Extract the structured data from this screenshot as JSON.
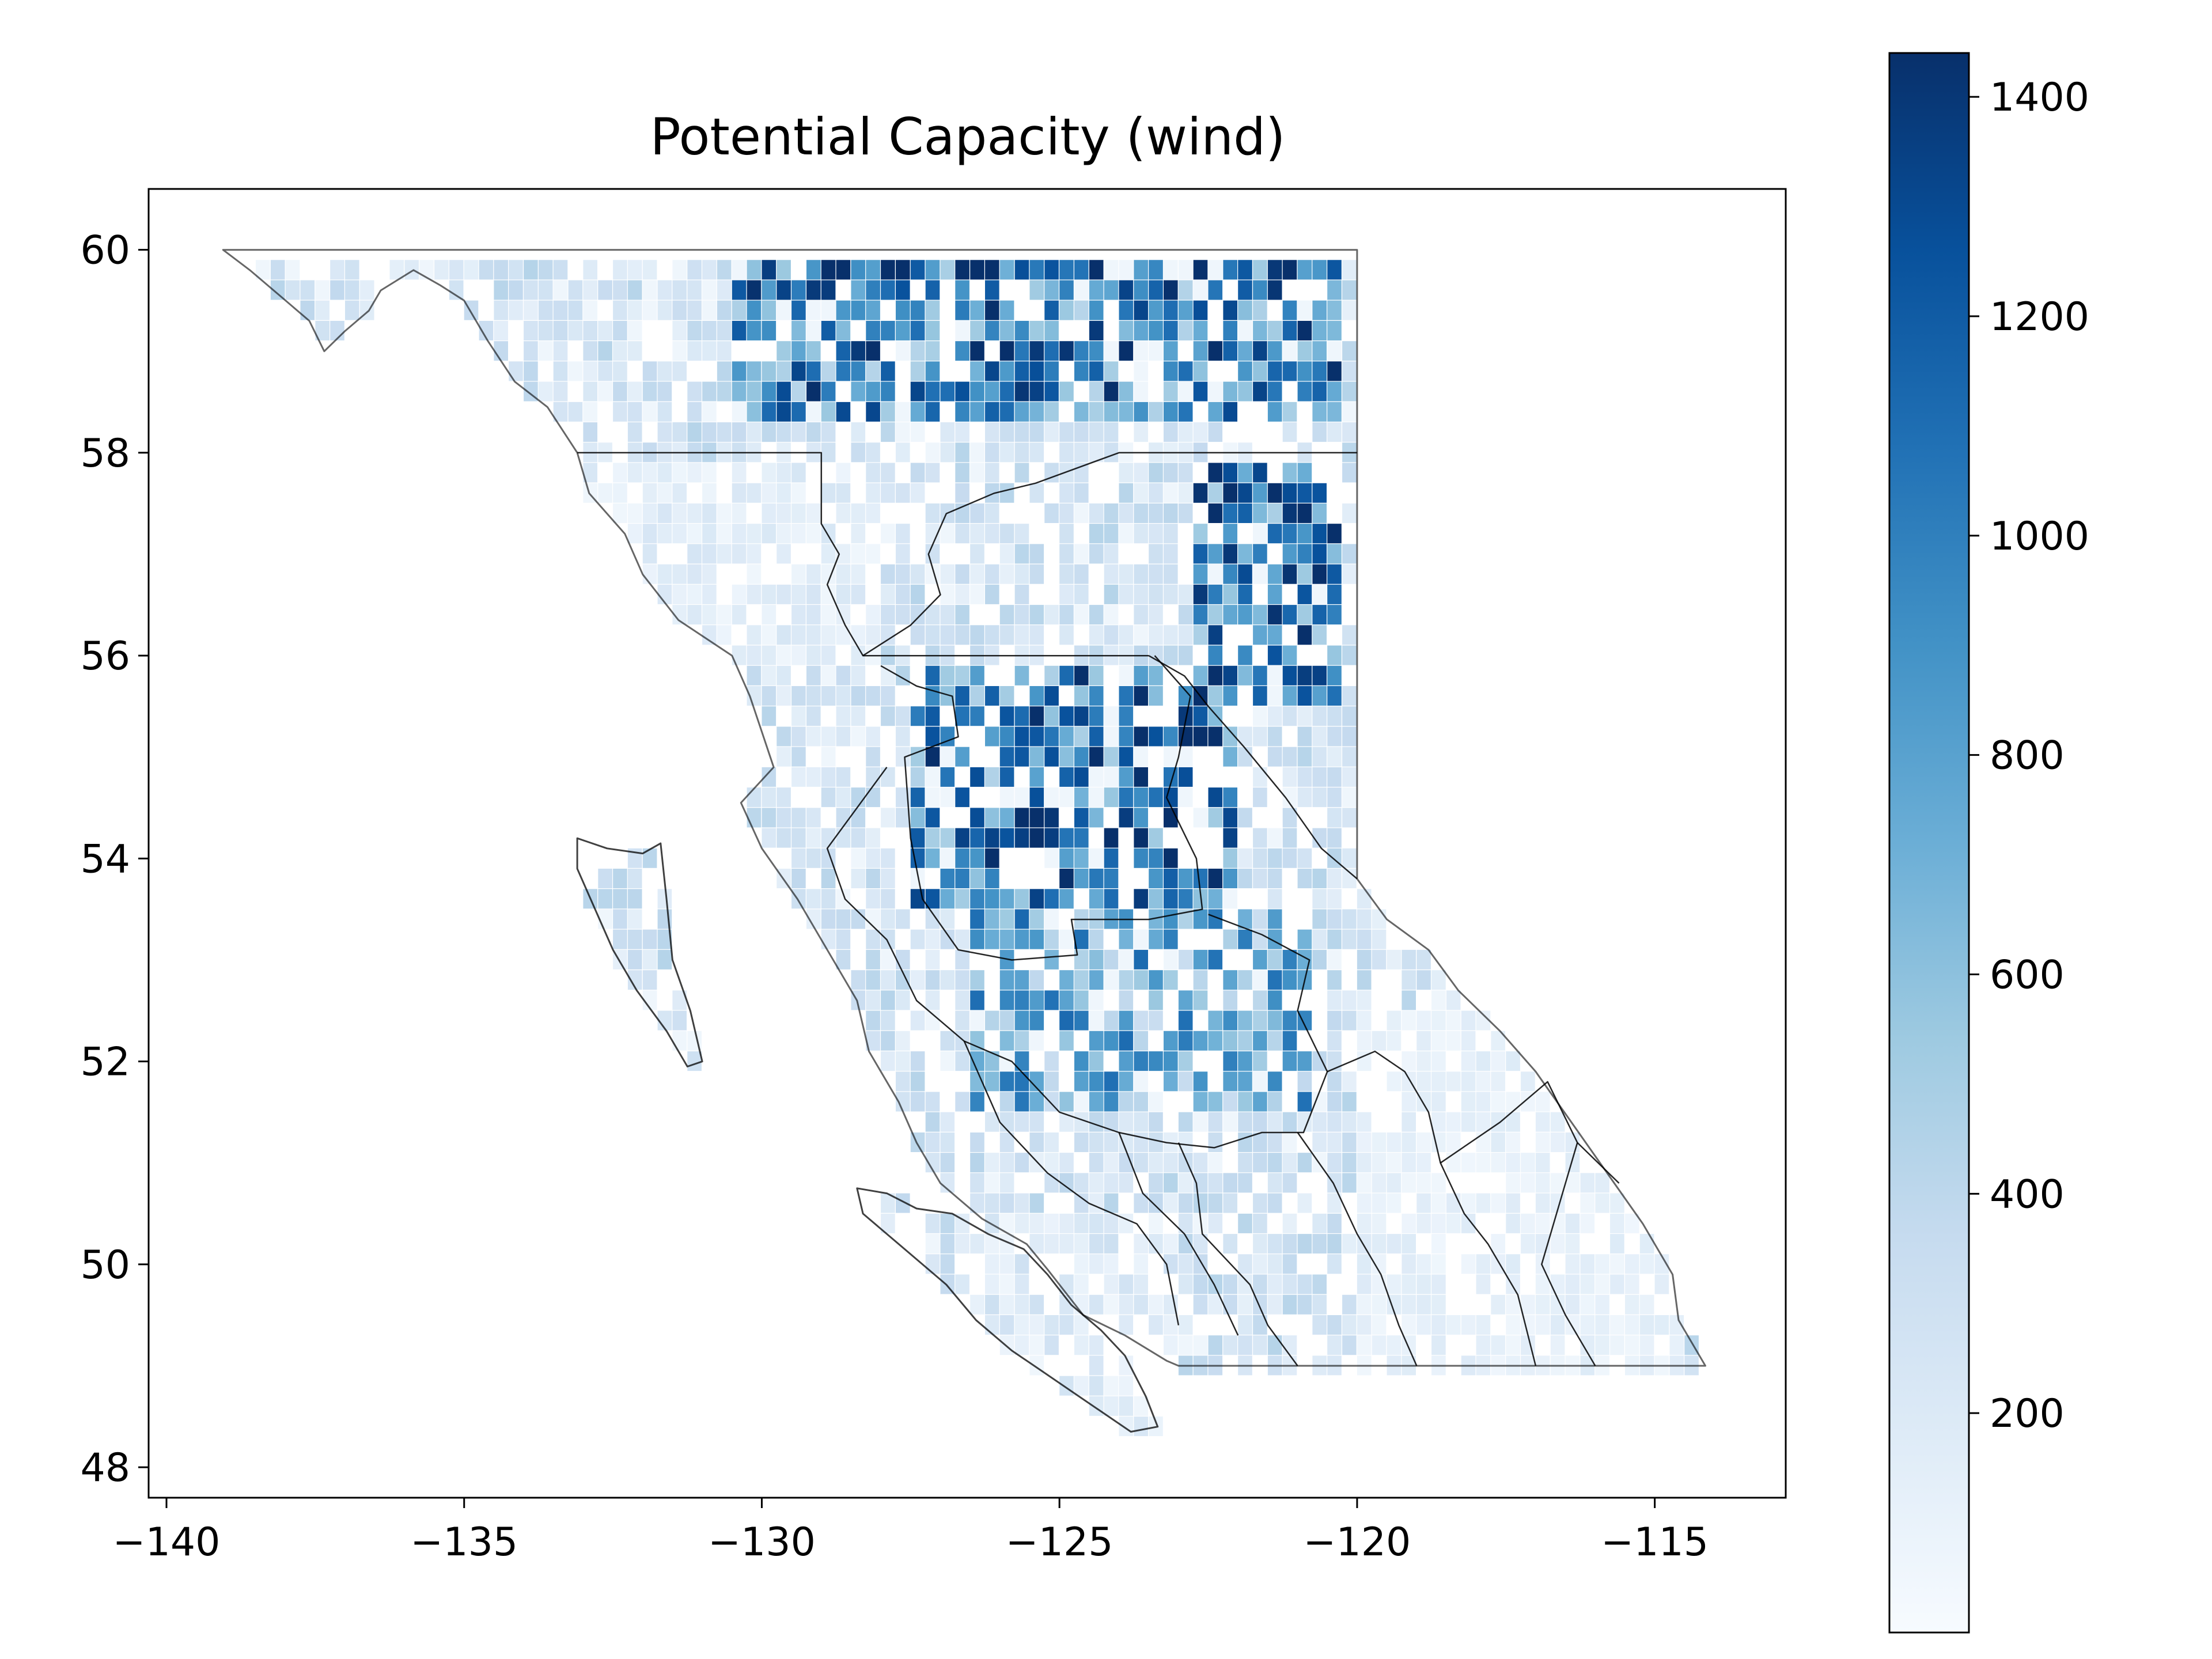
{
  "title": "Potential Capacity (wind)",
  "map": {
    "xlim": [
      -140.3,
      -112.8
    ],
    "ylim": [
      47.7,
      60.6
    ],
    "x_ticks": [
      -140,
      -135,
      -130,
      -125,
      -120,
      -115
    ],
    "x_tick_labels": [
      "−140",
      "−135",
      "−130",
      "−125",
      "−120",
      "−115"
    ],
    "y_ticks": [
      48,
      50,
      52,
      54,
      56,
      58,
      60
    ],
    "y_tick_labels": [
      "48",
      "50",
      "52",
      "54",
      "56",
      "58",
      "60"
    ],
    "cell_size_deg": [
      0.25,
      0.2
    ],
    "colormap": "Blues",
    "boundary_color": "#000000",
    "grid": false
  },
  "colorbar": {
    "min": 0,
    "max": 1440,
    "ticks": [
      200,
      400,
      600,
      800,
      1000,
      1200,
      1400
    ],
    "tick_labels": [
      "200",
      "400",
      "600",
      "800",
      "1000",
      "1200",
      "1400"
    ],
    "color_stops": [
      "#f7fbff",
      "#deebf7",
      "#c6dbef",
      "#9ecae1",
      "#6baed6",
      "#4292c6",
      "#2171b5",
      "#08519c",
      "#08306b"
    ]
  },
  "chart_data": {
    "type": "heatmap",
    "title": "Potential Capacity (wind)",
    "xlabel": "",
    "ylabel": "",
    "xlim": [
      -140.3,
      -112.8
    ],
    "ylim": [
      47.7,
      60.6
    ],
    "colorbar_range": [
      0,
      1440
    ],
    "high_value_regions": [
      {
        "lon_range": [
          -130.5,
          -120.2
        ],
        "lat_range": [
          58.3,
          60.0
        ],
        "approx_value": 1200
      },
      {
        "lon_range": [
          -122.8,
          -120.2
        ],
        "lat_range": [
          55.5,
          58.0
        ],
        "approx_value": 1300
      },
      {
        "lon_range": [
          -127.4,
          -122.0
        ],
        "lat_range": [
          53.6,
          56.0
        ],
        "approx_value": 1250
      },
      {
        "lon_range": [
          -126.5,
          -120.8
        ],
        "lat_range": [
          51.5,
          53.5
        ],
        "approx_value": 900
      }
    ],
    "low_value_regions": [
      {
        "lon_range": [
          -133.0,
          -128.0
        ],
        "lat_range": [
          56.0,
          58.0
        ],
        "approx_value": 200
      },
      {
        "lon_range": [
          -120.0,
          -114.5
        ],
        "lat_range": [
          49.0,
          52.5
        ],
        "approx_value": 150
      },
      {
        "lon_range": [
          -126.5,
          -123.0
        ],
        "lat_range": [
          48.4,
          50.5
        ],
        "approx_value": 250
      }
    ]
  }
}
